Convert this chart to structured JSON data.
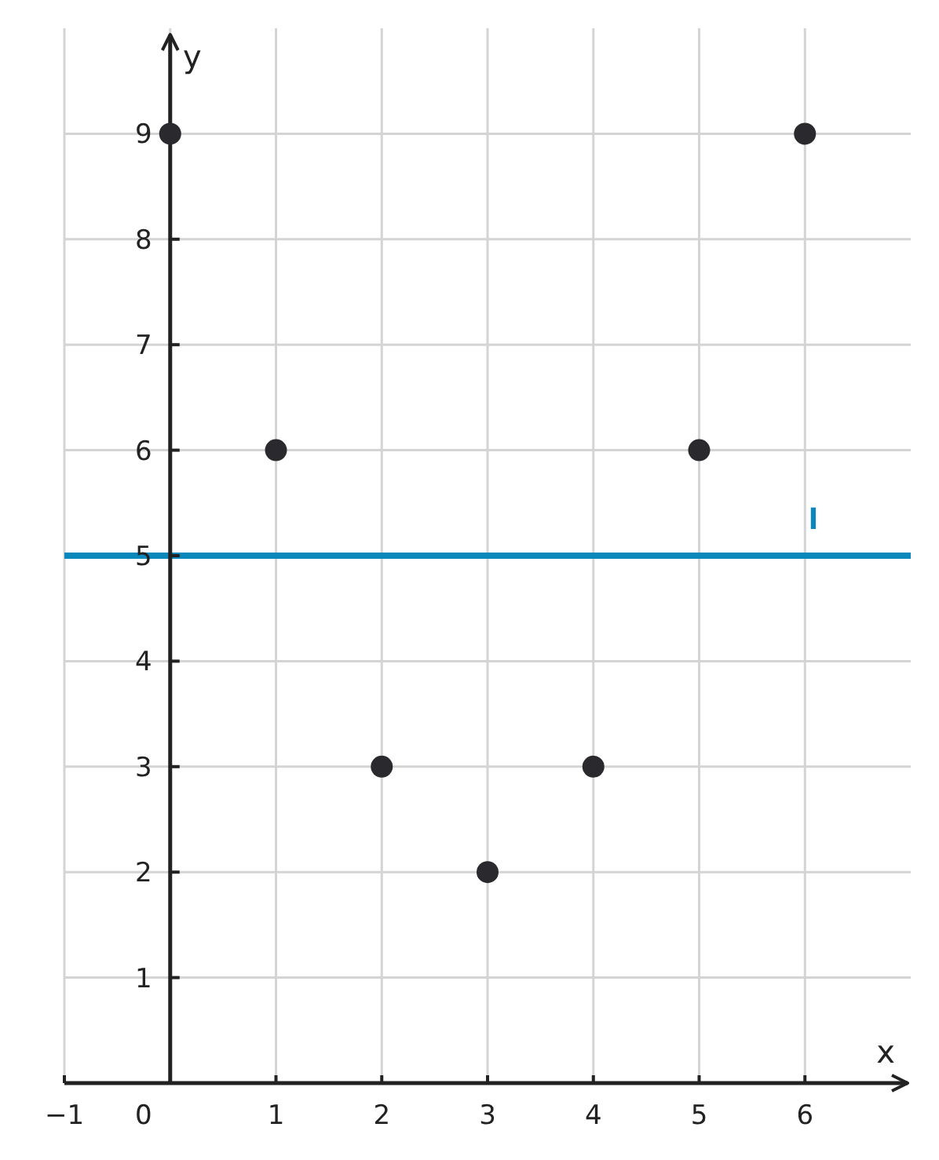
{
  "chart_data": {
    "type": "scatter",
    "xlabel": "x",
    "ylabel": "y",
    "x": [
      0,
      1,
      2,
      3,
      4,
      5,
      6
    ],
    "series": [
      {
        "color": "#2a2a2e",
        "values": [
          9,
          6,
          3,
          2,
          3,
          6,
          9
        ]
      }
    ],
    "xlim": [
      -1,
      7
    ],
    "xticks": [
      -1,
      0,
      1,
      2,
      3,
      4,
      5,
      6
    ],
    "ylim": [
      0,
      10
    ],
    "yticks": [
      1,
      2,
      3,
      4,
      5,
      6,
      7,
      8,
      9
    ],
    "ref_lines": [
      {
        "axis": "y",
        "value": 5,
        "label": "l",
        "color": "#0a88bb"
      }
    ],
    "grid": true,
    "marker": "circle"
  }
}
